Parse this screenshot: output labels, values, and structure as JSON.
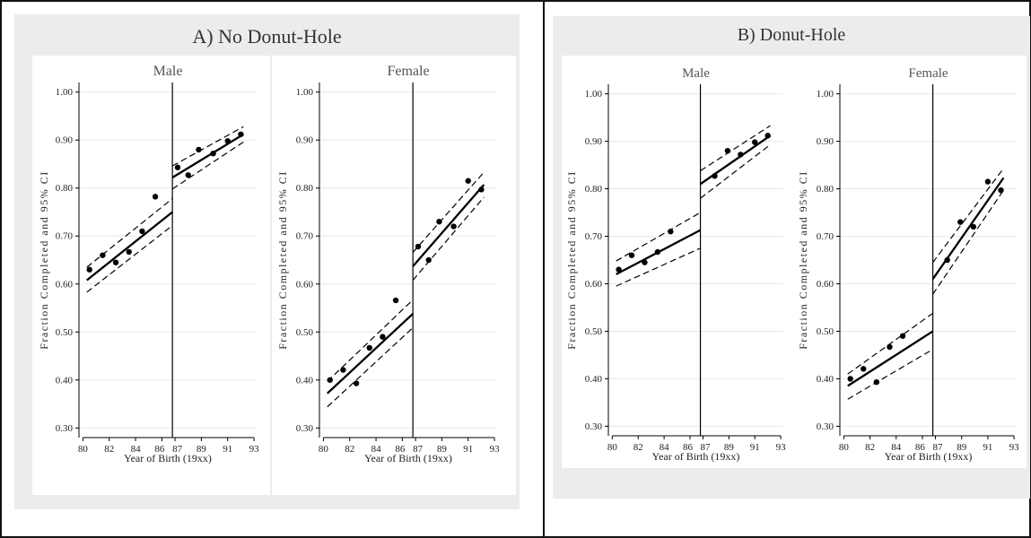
{
  "colors": {
    "background": "#ececec",
    "plot": "#ffffff",
    "line": "#000000",
    "border": "#111111",
    "grid": "#e8e8e8"
  },
  "y_axis_label": "Fraction Completed and 95% CI",
  "x_axis_label": "Year of Birth (19xx)",
  "chart_data": [
    {
      "type": "scatter",
      "title": "A) No Donut-Hole",
      "xlabel": "Year of Birth (19xx)",
      "ylabel": "Fraction Completed and 95% CI",
      "ylim": [
        0.28,
        1.02
      ],
      "xlim": [
        79.7,
        93.2
      ],
      "x_ticks": [
        "80",
        "82",
        "84",
        "86",
        "87",
        "89",
        "91",
        "93"
      ],
      "y_ticks": [
        "0.30",
        "0.40",
        "0.50",
        "0.60",
        "0.70",
        "0.80",
        "0.90",
        "1.00"
      ],
      "cutoff": 86.8,
      "grid": true,
      "panels": [
        {
          "label": "Male",
          "points": {
            "x": [
              80.5,
              81.5,
              82.5,
              83.5,
              84.5,
              85.5,
              87.2,
              88.0,
              88.8,
              89.9,
              91.0,
              92.0
            ],
            "y": [
              0.63,
              0.66,
              0.645,
              0.667,
              0.71,
              0.782,
              0.843,
              0.827,
              0.88,
              0.872,
              0.898,
              0.912
            ]
          },
          "fit_left": {
            "x": [
              80.3,
              86.8
            ],
            "y": [
              0.608,
              0.75
            ]
          },
          "ci_left_upper": {
            "x": [
              80.3,
              86.8
            ],
            "y": [
              0.635,
              0.778
            ]
          },
          "ci_left_lower": {
            "x": [
              80.3,
              86.8
            ],
            "y": [
              0.583,
              0.722
            ]
          },
          "fit_right": {
            "x": [
              86.8,
              92.2
            ],
            "y": [
              0.822,
              0.912
            ]
          },
          "ci_right_upper": {
            "x": [
              86.8,
              92.2
            ],
            "y": [
              0.846,
              0.928
            ]
          },
          "ci_right_lower": {
            "x": [
              86.8,
              92.2
            ],
            "y": [
              0.798,
              0.896
            ]
          }
        },
        {
          "label": "Female",
          "points": {
            "x": [
              80.5,
              81.5,
              82.5,
              83.5,
              84.5,
              85.5,
              87.2,
              88.0,
              88.8,
              89.9,
              91.0,
              92.0
            ],
            "y": [
              0.4,
              0.421,
              0.393,
              0.467,
              0.49,
              0.566,
              0.678,
              0.65,
              0.73,
              0.72,
              0.815,
              0.797
            ]
          },
          "fit_left": {
            "x": [
              80.3,
              86.8
            ],
            "y": [
              0.372,
              0.538
            ]
          },
          "ci_left_upper": {
            "x": [
              80.3,
              86.8
            ],
            "y": [
              0.397,
              0.567
            ]
          },
          "ci_left_lower": {
            "x": [
              80.3,
              86.8
            ],
            "y": [
              0.344,
              0.509
            ]
          },
          "fit_right": {
            "x": [
              86.8,
              92.2
            ],
            "y": [
              0.637,
              0.807
            ]
          },
          "ci_right_upper": {
            "x": [
              86.8,
              92.2
            ],
            "y": [
              0.666,
              0.833
            ]
          },
          "ci_right_lower": {
            "x": [
              86.8,
              92.2
            ],
            "y": [
              0.608,
              0.781
            ]
          }
        }
      ]
    },
    {
      "type": "scatter",
      "title": "B) Donut-Hole",
      "xlabel": "Year of Birth (19xx)",
      "ylabel": "Fraction Completed and 95% CI",
      "ylim": [
        0.28,
        1.02
      ],
      "xlim": [
        79.7,
        93.2
      ],
      "x_ticks": [
        "80",
        "82",
        "84",
        "86",
        "87",
        "89",
        "91",
        "93"
      ],
      "y_ticks": [
        "0.30",
        "0.40",
        "0.50",
        "0.60",
        "0.70",
        "0.80",
        "0.90",
        "1.00"
      ],
      "cutoff": 86.8,
      "grid": true,
      "panels": [
        {
          "label": "Male",
          "points": {
            "x": [
              80.5,
              81.5,
              82.5,
              83.5,
              84.5,
              87.9,
              88.9,
              89.9,
              91.0,
              92.0
            ],
            "y": [
              0.63,
              0.66,
              0.645,
              0.667,
              0.71,
              0.827,
              0.88,
              0.872,
              0.898,
              0.912
            ]
          },
          "fit_left": {
            "x": [
              80.3,
              86.8
            ],
            "y": [
              0.62,
              0.713
            ]
          },
          "ci_left_upper": {
            "x": [
              80.3,
              86.8
            ],
            "y": [
              0.648,
              0.75
            ]
          },
          "ci_left_lower": {
            "x": [
              80.3,
              86.8
            ],
            "y": [
              0.595,
              0.675
            ]
          },
          "fit_right": {
            "x": [
              86.8,
              92.2
            ],
            "y": [
              0.81,
              0.912
            ]
          },
          "ci_right_upper": {
            "x": [
              86.8,
              92.2
            ],
            "y": [
              0.838,
              0.933
            ]
          },
          "ci_right_lower": {
            "x": [
              86.8,
              92.2
            ],
            "y": [
              0.78,
              0.893
            ]
          }
        },
        {
          "label": "Female",
          "points": {
            "x": [
              80.5,
              81.5,
              82.5,
              83.5,
              84.5,
              87.9,
              88.9,
              89.9,
              91.0,
              92.0
            ],
            "y": [
              0.4,
              0.421,
              0.393,
              0.467,
              0.49,
              0.65,
              0.73,
              0.72,
              0.815,
              0.797
            ]
          },
          "fit_left": {
            "x": [
              80.3,
              86.8
            ],
            "y": [
              0.385,
              0.5
            ]
          },
          "ci_left_upper": {
            "x": [
              80.3,
              86.8
            ],
            "y": [
              0.41,
              0.538
            ]
          },
          "ci_left_lower": {
            "x": [
              80.3,
              86.8
            ],
            "y": [
              0.357,
              0.462
            ]
          },
          "fit_right": {
            "x": [
              86.8,
              92.2
            ],
            "y": [
              0.61,
              0.823
            ]
          },
          "ci_right_upper": {
            "x": [
              86.8,
              92.2
            ],
            "y": [
              0.645,
              0.843
            ]
          },
          "ci_right_lower": {
            "x": [
              86.8,
              92.2
            ],
            "y": [
              0.578,
              0.797
            ]
          }
        }
      ]
    }
  ]
}
